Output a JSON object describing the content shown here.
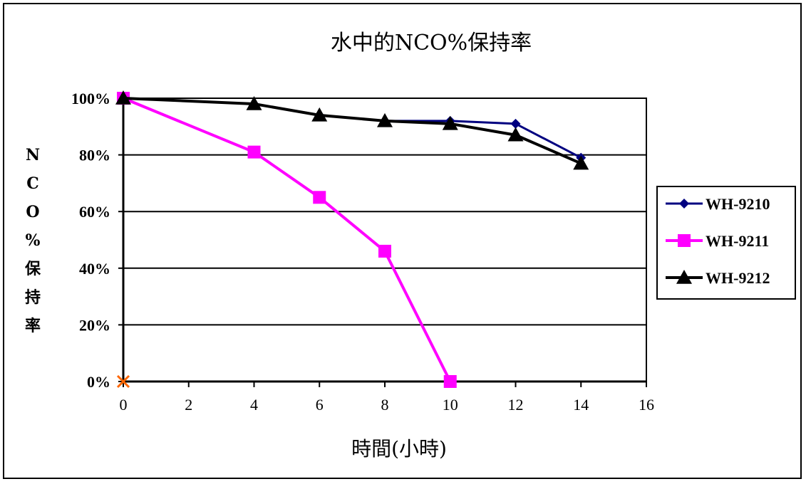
{
  "chart_data": {
    "type": "line",
    "title": "水中的NCO%保持率",
    "xlabel": "時間(小時)",
    "ylabel": "NCO%保持率",
    "ylabel_chars": [
      "N",
      "C",
      "O",
      "%",
      "保",
      "持",
      "率"
    ],
    "xlim": [
      0,
      16
    ],
    "ylim": [
      0,
      100
    ],
    "x_ticks": [
      "0",
      "2",
      "4",
      "6",
      "8",
      "10",
      "12",
      "14",
      "16"
    ],
    "y_ticks": [
      "0%",
      "20%",
      "40%",
      "60%",
      "80%",
      "100%"
    ],
    "grid": "horizontal",
    "legend_position": "right",
    "series": [
      {
        "name": "WH-9210",
        "color": "#000080",
        "marker": "diamond",
        "x": [
          0,
          4,
          6,
          8,
          10,
          12,
          14
        ],
        "y": [
          100,
          98,
          94,
          92,
          92,
          91,
          79
        ]
      },
      {
        "name": "WH-9211",
        "color": "#ff00ff",
        "marker": "square",
        "x": [
          0,
          4,
          6,
          8,
          10
        ],
        "y": [
          100,
          81,
          65,
          46,
          0
        ]
      },
      {
        "name": "WH-9212",
        "color": "#000000",
        "marker": "triangle",
        "x": [
          0,
          4,
          6,
          8,
          10,
          12,
          14
        ],
        "y": [
          100,
          98,
          94,
          92,
          91,
          87,
          77
        ]
      }
    ],
    "extra_marker": {
      "x": 0,
      "y": 0,
      "symbol": "x",
      "color": "#ff6600"
    }
  }
}
